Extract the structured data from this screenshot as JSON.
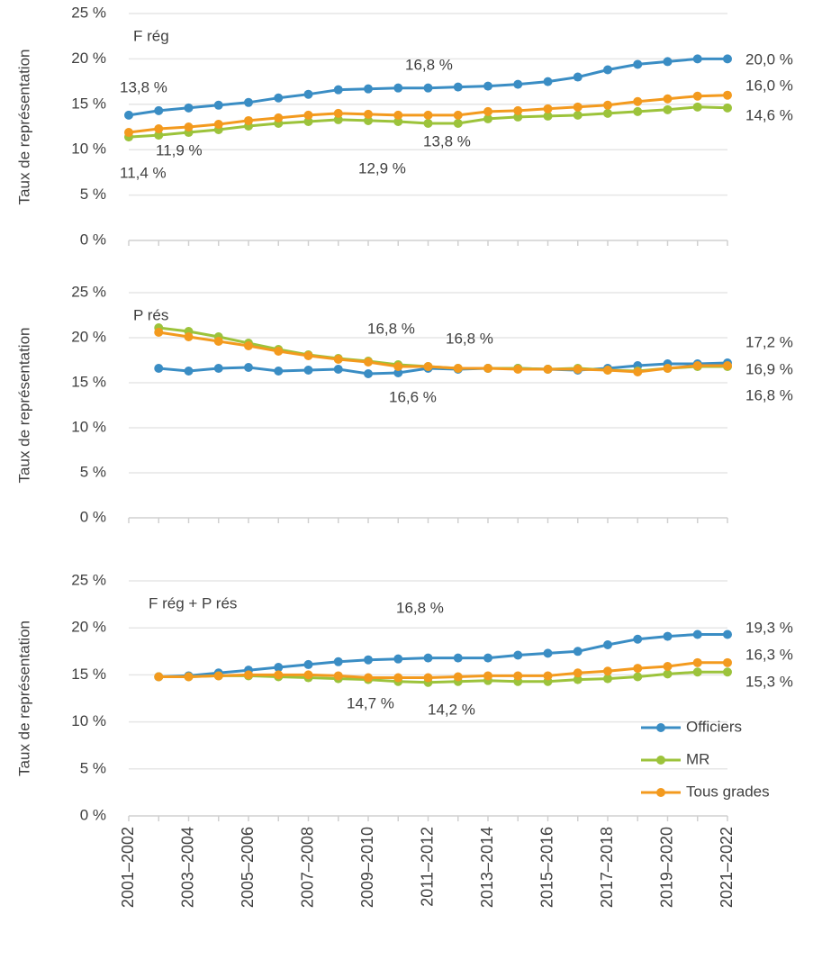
{
  "chart_data": [
    {
      "type": "line",
      "title": "F rég",
      "y_label": "Taux de représentation",
      "ylim": [
        0,
        25
      ],
      "yticks": [
        {
          "value": 0,
          "label": "0 %"
        },
        {
          "value": 5,
          "label": "5 %"
        },
        {
          "value": 10,
          "label": "10 %"
        },
        {
          "value": 15,
          "label": "15 %"
        },
        {
          "value": 20,
          "label": "20 %"
        },
        {
          "value": 25,
          "label": "25 %"
        }
      ],
      "grid": true,
      "series": [
        {
          "color": "#3a8dc4",
          "values": [
            13.8,
            14.3,
            14.6,
            14.9,
            15.2,
            15.7,
            16.1,
            16.6,
            16.7,
            16.8,
            16.8,
            16.9,
            17.0,
            17.2,
            17.5,
            18.0,
            18.8,
            19.4,
            19.7,
            20.0,
            20.0
          ],
          "value_labels": [
            "13,8 %",
            null,
            null,
            null,
            null,
            null,
            null,
            null,
            null,
            null,
            "16,8 %",
            null,
            null,
            null,
            null,
            null,
            null,
            null,
            null,
            null,
            "20,0 %"
          ]
        },
        {
          "color": "#9cc33b",
          "values": [
            11.4,
            11.6,
            11.9,
            12.2,
            12.6,
            12.9,
            13.1,
            13.3,
            13.2,
            13.1,
            12.9,
            12.9,
            13.4,
            13.6,
            13.7,
            13.8,
            14.0,
            14.2,
            14.4,
            14.7,
            14.6
          ],
          "value_labels": [
            "11,4 %",
            null,
            null,
            null,
            null,
            null,
            null,
            null,
            null,
            null,
            "12,9 %",
            null,
            null,
            null,
            null,
            null,
            null,
            null,
            null,
            null,
            "14,6 %"
          ]
        },
        {
          "color": "#f39a1e",
          "values": [
            11.9,
            12.3,
            12.5,
            12.8,
            13.2,
            13.5,
            13.8,
            14.0,
            13.9,
            13.8,
            13.8,
            13.8,
            14.2,
            14.3,
            14.5,
            14.7,
            14.9,
            15.3,
            15.6,
            15.9,
            16.0
          ],
          "value_labels": [
            "11,9 %",
            null,
            null,
            null,
            null,
            null,
            null,
            null,
            null,
            null,
            "13,8 %",
            null,
            null,
            null,
            null,
            null,
            null,
            null,
            null,
            null,
            "16,0 %"
          ]
        }
      ]
    },
    {
      "type": "line",
      "title": "P rés",
      "y_label": "Taux de représentation",
      "ylim": [
        0,
        25
      ],
      "yticks": [
        {
          "value": 0,
          "label": "0 %"
        },
        {
          "value": 5,
          "label": "5 %"
        },
        {
          "value": 10,
          "label": "10 %"
        },
        {
          "value": 15,
          "label": "15 %"
        },
        {
          "value": 20,
          "label": "20 %"
        },
        {
          "value": 25,
          "label": "25 %"
        }
      ],
      "grid": true,
      "series": [
        {
          "color": "#3a8dc4",
          "values": [
            null,
            16.6,
            16.3,
            16.6,
            16.7,
            16.3,
            16.4,
            16.5,
            16.0,
            16.1,
            16.6,
            16.5,
            16.6,
            16.6,
            16.5,
            16.4,
            16.6,
            16.9,
            17.1,
            17.1,
            17.2
          ],
          "value_labels": [
            null,
            null,
            null,
            null,
            null,
            null,
            null,
            null,
            null,
            null,
            "16,6 %",
            null,
            null,
            null,
            null,
            null,
            null,
            null,
            null,
            null,
            "17,2 %"
          ]
        },
        {
          "color": "#9cc33b",
          "values": [
            null,
            21.1,
            20.7,
            20.1,
            19.4,
            18.7,
            18.1,
            17.7,
            17.4,
            17.0,
            16.8,
            16.6,
            16.6,
            16.6,
            16.5,
            16.6,
            16.4,
            16.3,
            16.6,
            16.8,
            16.8
          ],
          "value_labels": [
            null,
            null,
            null,
            null,
            null,
            null,
            null,
            null,
            null,
            null,
            "16,8 %",
            null,
            null,
            null,
            null,
            null,
            null,
            null,
            null,
            null,
            "16,8 %"
          ]
        },
        {
          "color": "#f39a1e",
          "values": [
            null,
            20.6,
            20.1,
            19.6,
            19.1,
            18.5,
            18.0,
            17.6,
            17.3,
            16.8,
            16.8,
            16.6,
            16.6,
            16.5,
            16.5,
            16.5,
            16.4,
            16.2,
            16.6,
            16.9,
            16.9
          ],
          "value_labels": [
            null,
            null,
            null,
            null,
            null,
            null,
            null,
            null,
            null,
            null,
            "16,8 %",
            null,
            null,
            null,
            null,
            null,
            null,
            null,
            null,
            null,
            "16,9 %"
          ]
        }
      ]
    },
    {
      "type": "line",
      "title": "F rég + P rés",
      "y_label": "Taux de représentation",
      "categories": [
        "2001–2002",
        null,
        "2003–2004",
        null,
        "2005–2006",
        null,
        "2007–2008",
        null,
        "2009–2010",
        null,
        "2011–2012",
        null,
        "2013–2014",
        null,
        "2015–2016",
        null,
        "2017–2018",
        null,
        "2019–2020",
        null,
        "2021–2022"
      ],
      "ylim": [
        0,
        25
      ],
      "yticks": [
        {
          "value": 0,
          "label": "0 %"
        },
        {
          "value": 5,
          "label": "5 %"
        },
        {
          "value": 10,
          "label": "10 %"
        },
        {
          "value": 15,
          "label": "15 %"
        },
        {
          "value": 20,
          "label": "20 %"
        },
        {
          "value": 25,
          "label": "25 %"
        }
      ],
      "grid": true,
      "legend": "lower right",
      "series": [
        {
          "name": "Officiers",
          "color": "#3a8dc4",
          "values": [
            null,
            14.8,
            14.9,
            15.2,
            15.5,
            15.8,
            16.1,
            16.4,
            16.6,
            16.7,
            16.8,
            16.8,
            16.8,
            17.1,
            17.3,
            17.5,
            18.2,
            18.8,
            19.1,
            19.3,
            19.3
          ],
          "value_labels": [
            null,
            null,
            null,
            null,
            null,
            null,
            null,
            null,
            null,
            null,
            "16,8 %",
            null,
            null,
            null,
            null,
            null,
            null,
            null,
            null,
            null,
            "19,3 %"
          ]
        },
        {
          "name": "MR",
          "color": "#9cc33b",
          "values": [
            null,
            14.8,
            14.8,
            14.9,
            14.9,
            14.8,
            14.7,
            14.6,
            14.5,
            14.3,
            14.2,
            14.3,
            14.4,
            14.3,
            14.3,
            14.5,
            14.6,
            14.8,
            15.1,
            15.3,
            15.3
          ],
          "value_labels": [
            null,
            null,
            null,
            null,
            null,
            null,
            null,
            null,
            null,
            null,
            "14,2 %",
            null,
            null,
            null,
            null,
            null,
            null,
            null,
            null,
            null,
            "15,3 %"
          ]
        },
        {
          "name": "Tous grades",
          "color": "#f39a1e",
          "values": [
            null,
            14.8,
            14.8,
            14.9,
            15.0,
            15.0,
            15.0,
            14.9,
            14.7,
            14.7,
            14.7,
            14.8,
            14.9,
            14.9,
            14.9,
            15.2,
            15.4,
            15.7,
            15.9,
            16.3,
            16.3
          ],
          "value_labels": [
            null,
            null,
            null,
            null,
            null,
            null,
            null,
            null,
            null,
            "14,7 %",
            null,
            null,
            null,
            null,
            null,
            null,
            null,
            null,
            null,
            null,
            "16,3 %"
          ]
        }
      ]
    }
  ]
}
